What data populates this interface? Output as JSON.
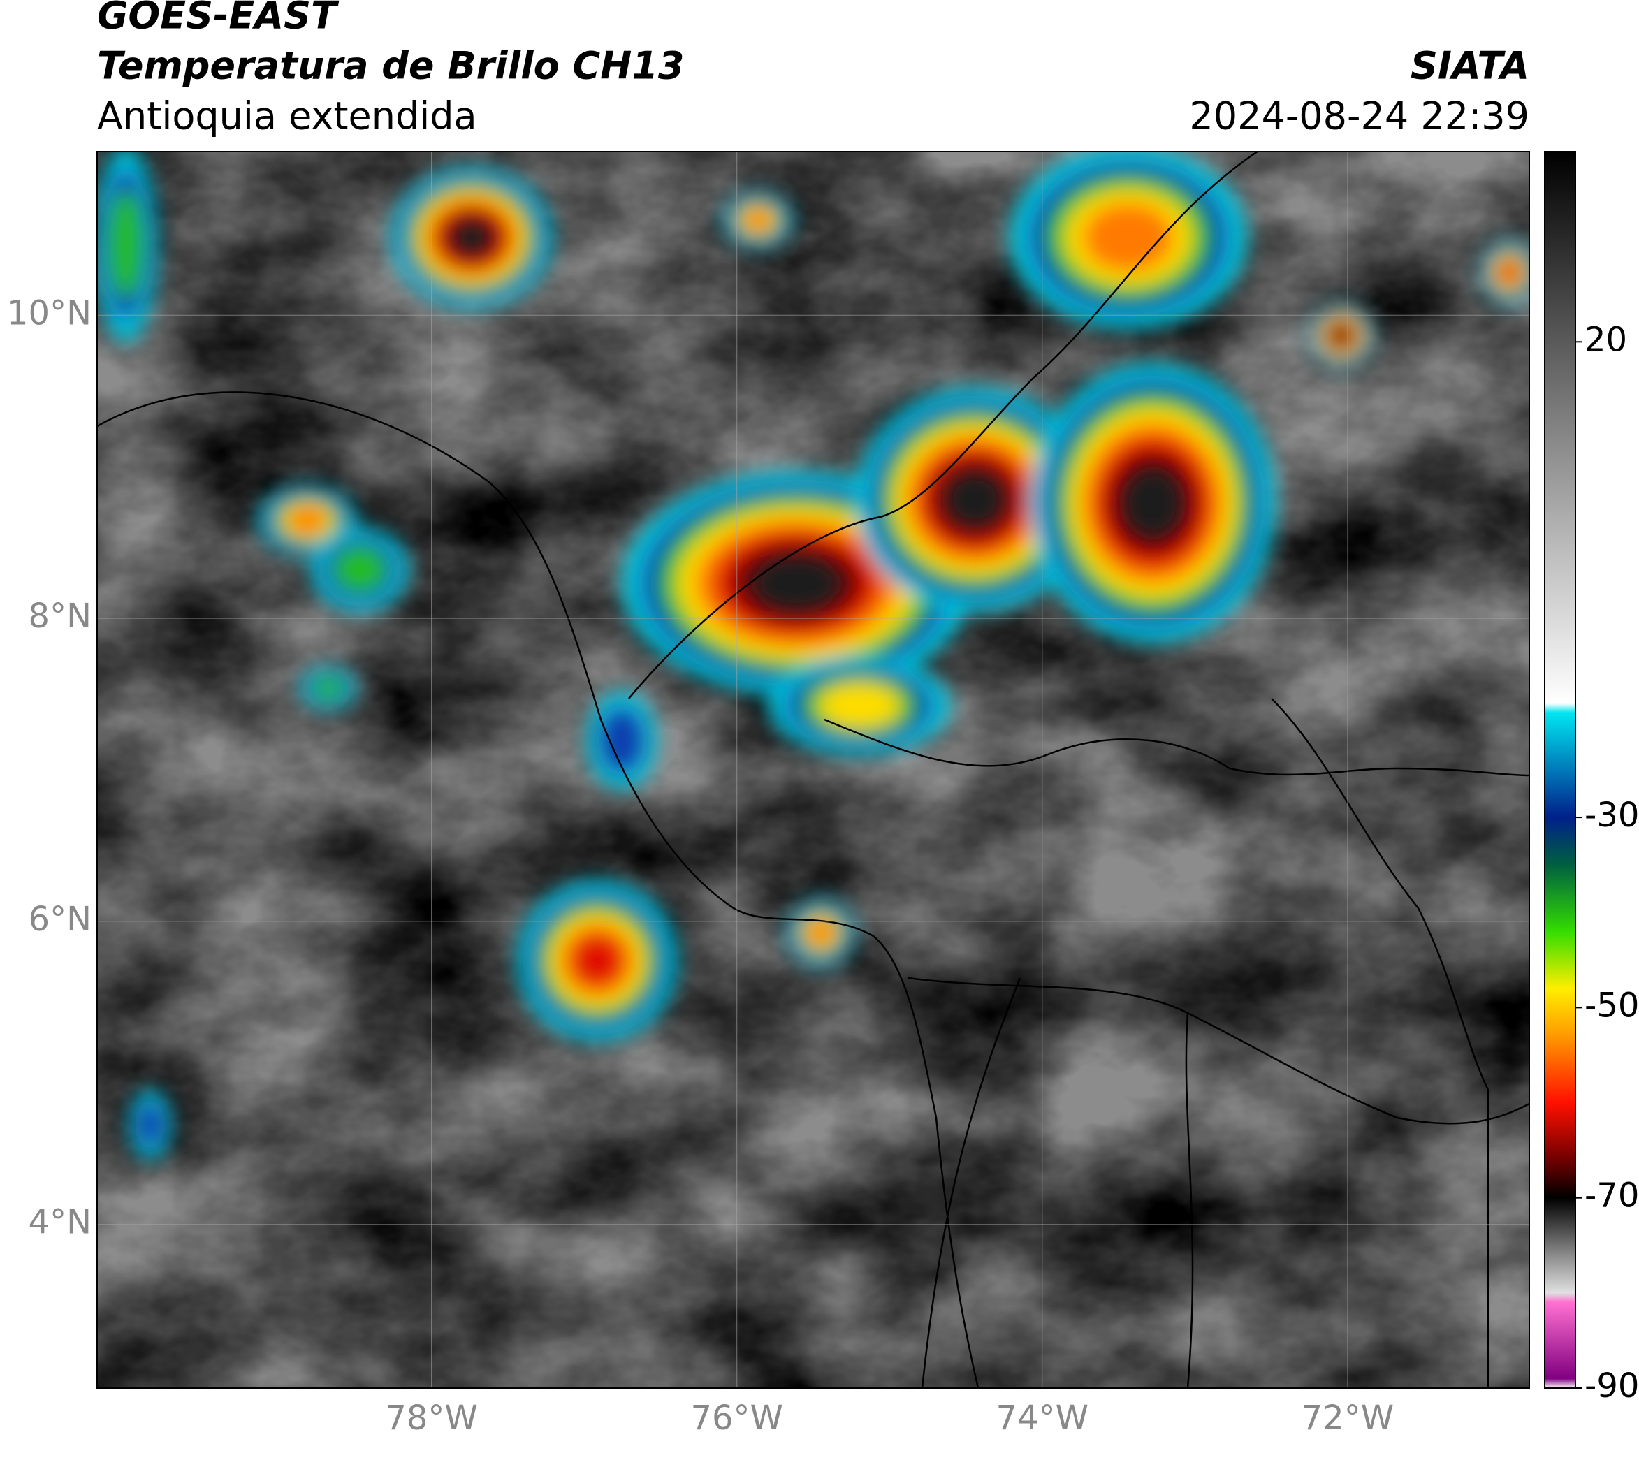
{
  "header": {
    "title": "GOES-EAST",
    "subtitle": "Temperatura de Brillo CH13",
    "region": "Antioquia extendida",
    "source": "SIATA",
    "datetime": "2024-08-24 22:39"
  },
  "map": {
    "xlim": [
      -80.19,
      -70.81
    ],
    "ylim": [
      2.92,
      11.08
    ],
    "xticks": [
      {
        "value": -78,
        "label": "78°W"
      },
      {
        "value": -76,
        "label": "76°W"
      },
      {
        "value": -74,
        "label": "74°W"
      },
      {
        "value": -72,
        "label": "72°W"
      }
    ],
    "yticks": [
      {
        "value": 10,
        "label": "10°N"
      },
      {
        "value": 8,
        "label": "8°N"
      },
      {
        "value": 6,
        "label": "6°N"
      },
      {
        "value": 4,
        "label": "4°N"
      }
    ],
    "grid": true
  },
  "colorbar": {
    "lim": [
      -90,
      40
    ],
    "ticks": [
      20,
      -30,
      -50,
      -70,
      -90
    ],
    "stops": [
      {
        "value": 40,
        "color": "#000000"
      },
      {
        "value": 20,
        "color": "#5a5a5a"
      },
      {
        "value": 0,
        "color": "#b4b4b4"
      },
      {
        "value": -18,
        "color": "#ffffff"
      },
      {
        "value": -19,
        "color": "#00e5f0"
      },
      {
        "value": -30,
        "color": "#00208a"
      },
      {
        "value": -35,
        "color": "#006040"
      },
      {
        "value": -42,
        "color": "#33dd00"
      },
      {
        "value": -48,
        "color": "#ffee00"
      },
      {
        "value": -53,
        "color": "#ff9900"
      },
      {
        "value": -60,
        "color": "#ff1000"
      },
      {
        "value": -66,
        "color": "#700000"
      },
      {
        "value": -70,
        "color": "#000000"
      },
      {
        "value": -76,
        "color": "#8a8a8a"
      },
      {
        "value": -80,
        "color": "#e0e0e0"
      },
      {
        "value": -81,
        "color": "#ff70d0"
      },
      {
        "value": -89,
        "color": "#800080"
      },
      {
        "value": -90,
        "color": "#ffffff"
      }
    ]
  }
}
